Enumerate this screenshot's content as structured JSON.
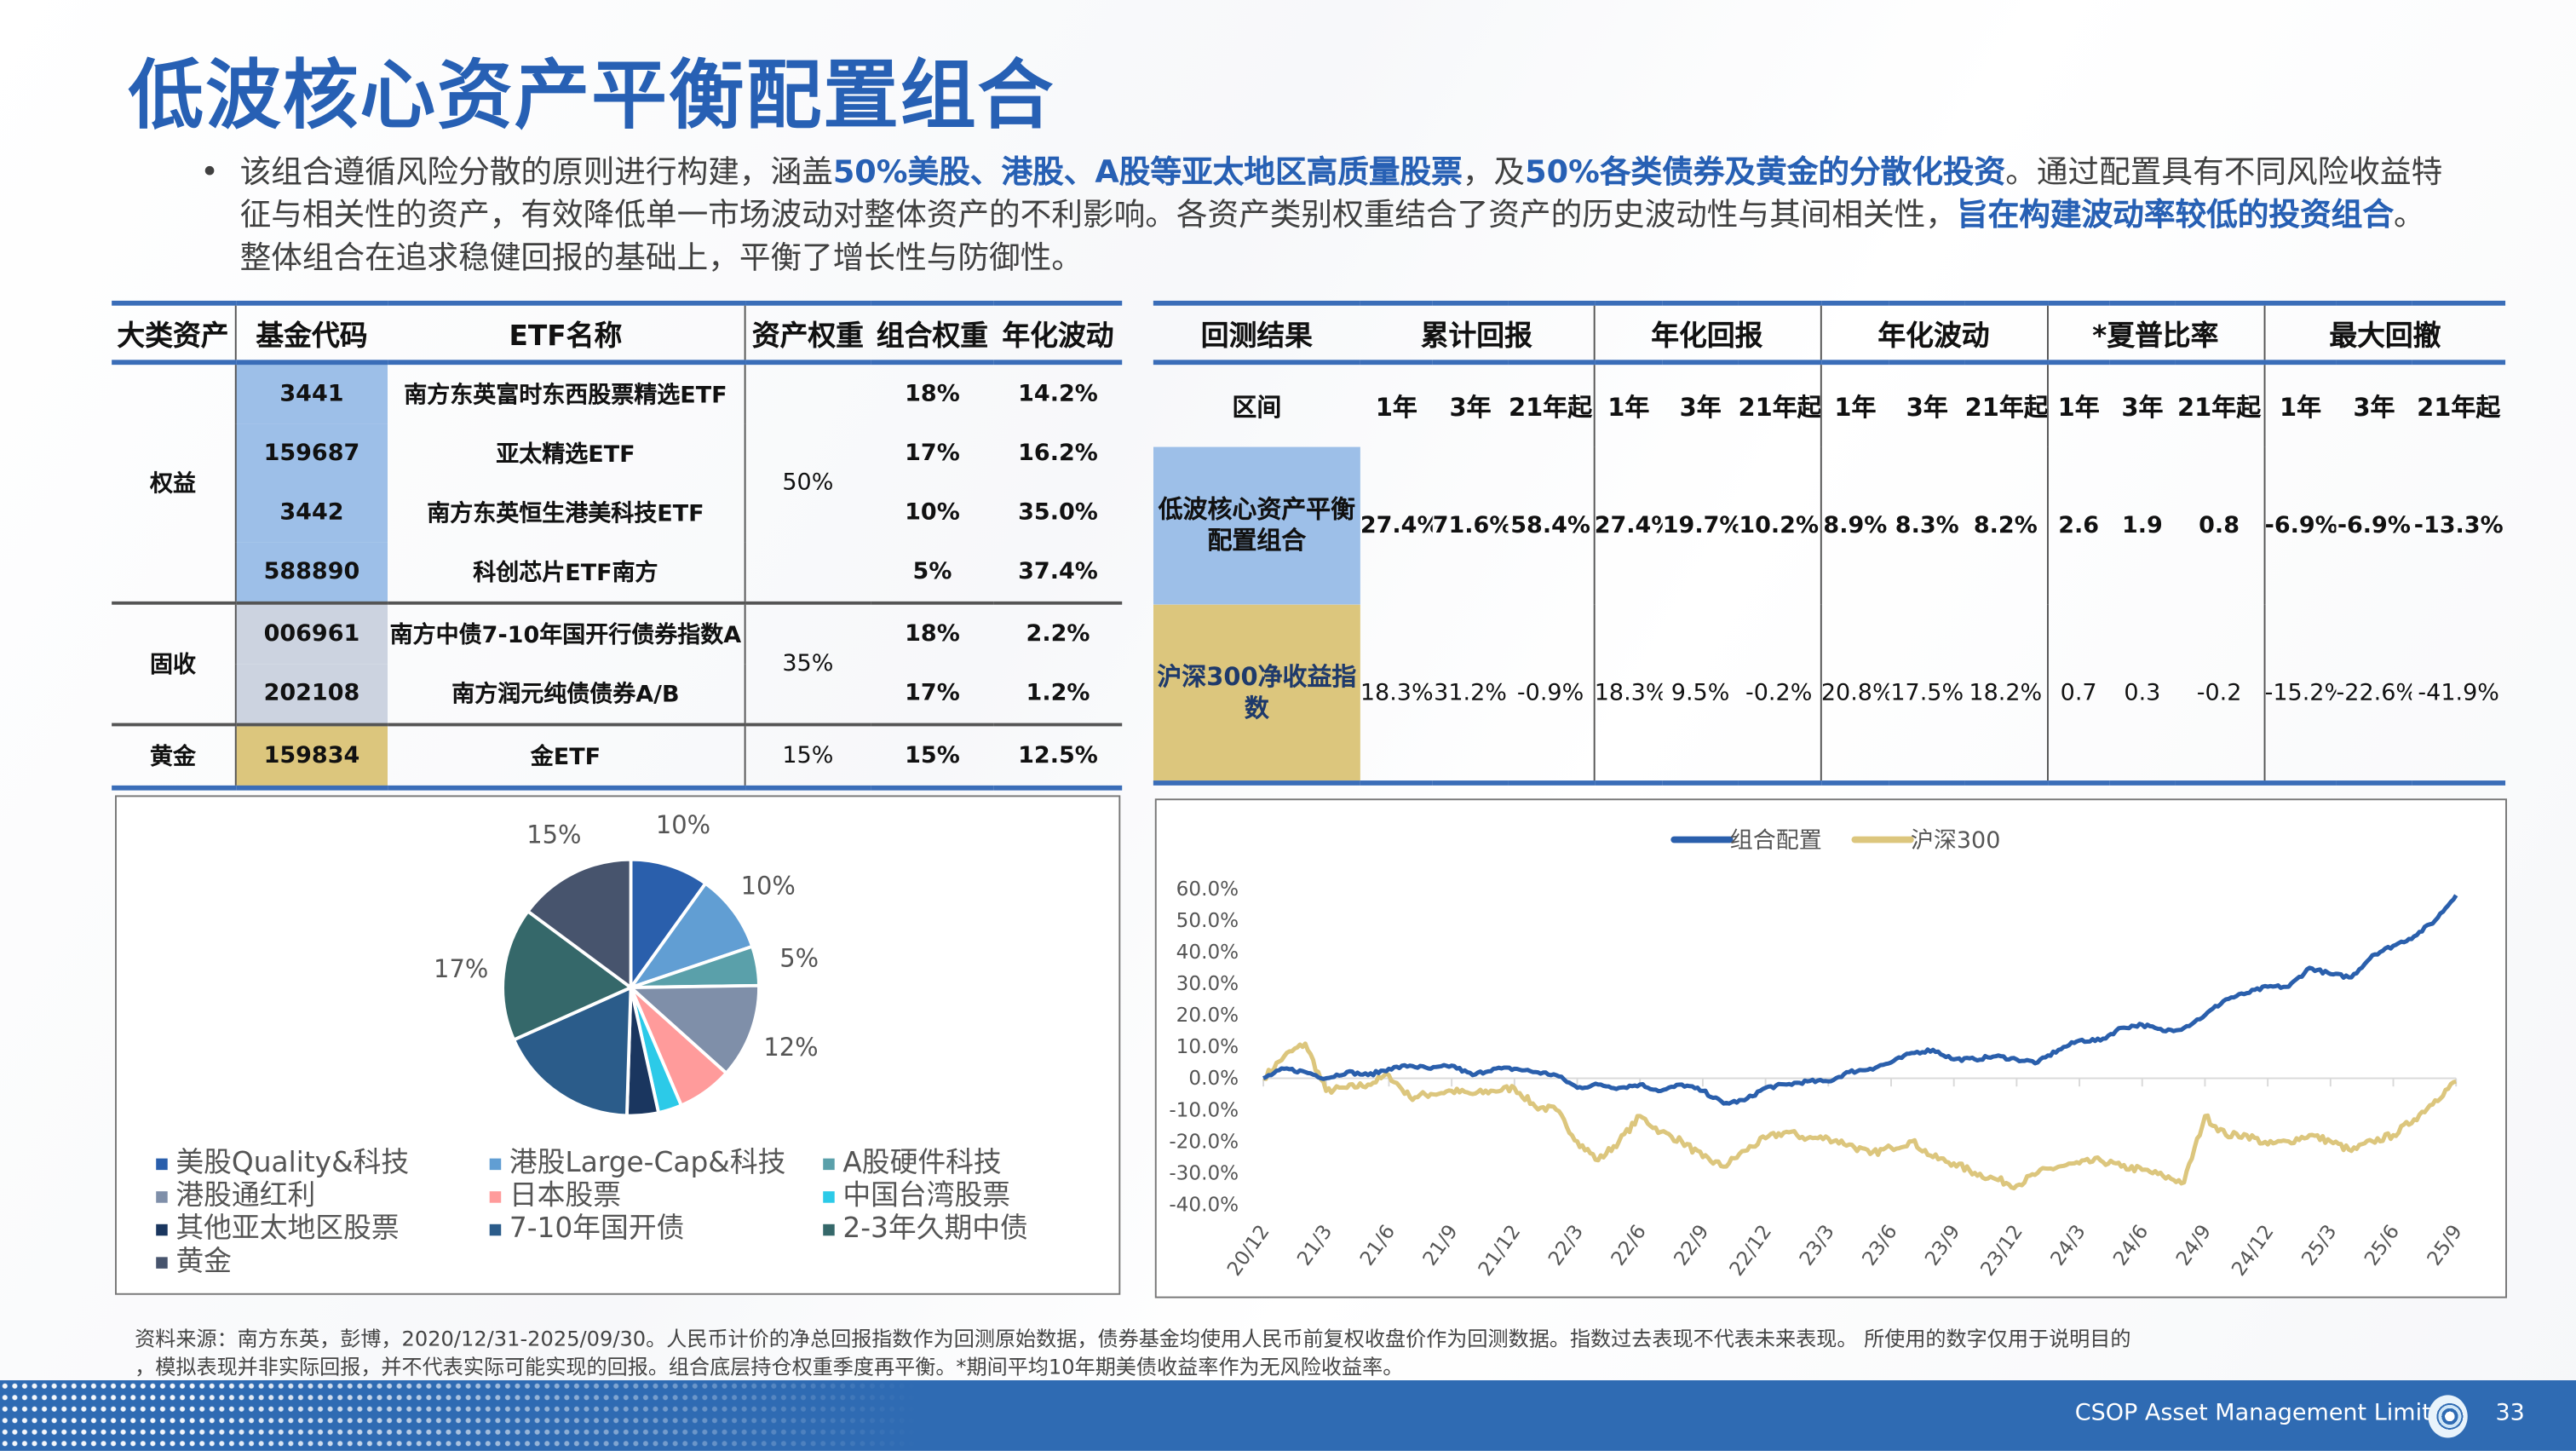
{
  "title": "低波核心资产平衡配置组合",
  "bullet": {
    "t1": "该组合遵循风险分散的原则进行构建，涵盖",
    "h1": "50%美股、港股、A股等亚太地区高质量股票",
    "t2": "，及",
    "h2": "50%各类债券及黄金的分散化投资",
    "t3": "。通过配置具有不同风险收益特征与相关性的资产，有效降低单一市场波动对整体资产的不利影响。各资产类别权重结合了资产的历史波动性与其间相关性，",
    "h3": "旨在构建波动率较低的投资组合",
    "t4": "。整体组合在追求稳健回报的基础上，平衡了增长性与防御性。"
  },
  "holdings": {
    "headers": [
      "大类资产",
      "基金代码",
      "ETF名称",
      "资产权重",
      "组合权重",
      "年化波动"
    ],
    "groups": [
      {
        "asset": "权益",
        "asset_weight": "50%",
        "rows": [
          {
            "code": "3441",
            "name": "南方东英富时东西股票精选ETF",
            "weight": "18%",
            "vol": "14.2%"
          },
          {
            "code": "159687",
            "name": "亚太精选ETF",
            "weight": "17%",
            "vol": "16.2%"
          },
          {
            "code": "3442",
            "name": "南方东英恒生港美科技ETF",
            "weight": "10%",
            "vol": "35.0%"
          },
          {
            "code": "588890",
            "name": "科创芯片ETF南方",
            "weight": "5%",
            "vol": "37.4%"
          }
        ]
      },
      {
        "asset": "固收",
        "asset_weight": "35%",
        "rows": [
          {
            "code": "006961",
            "name": "南方中债7-10年国开行债券指数A",
            "weight": "18%",
            "vol": "2.2%"
          },
          {
            "code": "202108",
            "name": "南方润元纯债债券A/B",
            "weight": "17%",
            "vol": "1.2%"
          }
        ]
      },
      {
        "asset": "黄金",
        "asset_weight": "15%",
        "rows": [
          {
            "code": "159834",
            "name": "金ETF",
            "weight": "15%",
            "vol": "12.5%"
          }
        ]
      }
    ]
  },
  "backtest": {
    "headers": [
      "回测结果",
      "累计回报",
      "年化回报",
      "年化波动",
      "*夏普比率",
      "最大回撤"
    ],
    "period_label": "区间",
    "periods": [
      "1年",
      "3年",
      "21年起"
    ],
    "rows": [
      {
        "label": "低波核心资产平衡配置组合",
        "values": [
          "27.4%",
          "71.6%",
          "58.4%",
          "27.4%",
          "19.7%",
          "10.2%",
          "8.9%",
          "8.3%",
          "8.2%",
          "2.6",
          "1.9",
          "0.8",
          "-6.9%",
          "-6.9%",
          "-13.3%"
        ]
      },
      {
        "label": "沪深300净收益指数",
        "values": [
          "18.3%",
          "31.2%",
          "-0.9%",
          "18.3%",
          "9.5%",
          "-0.2%",
          "20.8%",
          "17.5%",
          "18.2%",
          "0.7",
          "0.3",
          "-0.2",
          "-15.2%",
          "-22.6%",
          "-41.9%"
        ]
      }
    ]
  },
  "chart_data": [
    {
      "type": "pie",
      "title": "",
      "slices": [
        {
          "label": "美股Quality&科技",
          "value": 10,
          "display": "10%",
          "color": "#2a5fac"
        },
        {
          "label": "港股Large-Cap&科技",
          "value": 10,
          "display": "10%",
          "color": "#619ed3"
        },
        {
          "label": "A股硬件科技",
          "value": 5,
          "display": "5%",
          "color": "#5aa0aa"
        },
        {
          "label": "港股通红利",
          "value": 12,
          "display": "12%",
          "color": "#7f8fa9"
        },
        {
          "label": "日本股票",
          "value": 7,
          "display": "7%",
          "color": "#ff9b9b"
        },
        {
          "label": "中国台湾股票",
          "value": 3,
          "display": "3%",
          "color": "#2ccae8"
        },
        {
          "label": "其他亚太地区股票",
          "value": 4,
          "display": "4%",
          "color": "#1a365f"
        },
        {
          "label": "7-10年国开债",
          "value": 18,
          "display": "18%",
          "color": "#2b5c8a"
        },
        {
          "label": "2-3年久期中债",
          "value": 17,
          "display": "17%",
          "color": "#35686a"
        },
        {
          "label": "黄金",
          "value": 15,
          "display": "15%",
          "color": "#47546d"
        }
      ],
      "legend_position": "bottom"
    },
    {
      "type": "line",
      "title": "",
      "xlabel": "",
      "ylabel": "",
      "ylim": [
        -40,
        60
      ],
      "yticks": [
        "60.0%",
        "50.0%",
        "40.0%",
        "30.0%",
        "20.0%",
        "10.0%",
        "0.0%",
        "-10.0%",
        "-20.0%",
        "-30.0%",
        "-40.0%"
      ],
      "xticks": [
        "20/12",
        "21/3",
        "21/6",
        "21/9",
        "21/12",
        "22/3",
        "22/6",
        "22/9",
        "22/12",
        "23/3",
        "23/6",
        "23/9",
        "23/12",
        "24/3",
        "24/6",
        "24/9",
        "24/12",
        "25/3",
        "25/6",
        "25/9"
      ],
      "legend_position": "top",
      "x_start": "20/12",
      "x_end": "25/9",
      "x_step": "monthly",
      "series": [
        {
          "name": "组合配置",
          "color": "#2a5fac",
          "values": [
            0,
            3,
            2,
            0,
            2,
            1,
            3,
            4,
            3,
            4,
            1,
            3,
            3,
            2,
            1,
            -3,
            -2,
            -3,
            -2,
            -4,
            -2,
            -4,
            -8,
            -7,
            -3,
            -2,
            -1,
            -1,
            2,
            3,
            5,
            8,
            9,
            6,
            6,
            7,
            6,
            5,
            9,
            12,
            12,
            16,
            17,
            15,
            16,
            20,
            25,
            27,
            29,
            29,
            35,
            33,
            32,
            39,
            42,
            45,
            50,
            58
          ]
        },
        {
          "name": "沪深300",
          "color": "#dcc67d",
          "values": [
            0,
            7,
            11,
            -4,
            -3,
            -2,
            1,
            -6,
            -5,
            -4,
            -5,
            -4,
            -3,
            -9,
            -10,
            -20,
            -26,
            -20,
            -12,
            -17,
            -20,
            -25,
            -28,
            -23,
            -19,
            -17,
            -19,
            -19,
            -21,
            -24,
            -22,
            -20,
            -25,
            -27,
            -30,
            -32,
            -34,
            -30,
            -28,
            -27,
            -26,
            -28,
            -29,
            -31,
            -33,
            -12,
            -18,
            -18,
            -21,
            -20,
            -18,
            -20,
            -23,
            -20,
            -18,
            -13,
            -7,
            -1
          ]
        }
      ]
    }
  ],
  "notes": [
    "资料来源：南方东英，彭博，2020/12/31-2025/09/30。人民币计价的净总回报指数作为回测原始数据，债券基金均使用人民币前复权收盘价作为回测数据。指数过去表现不代表未来表现。 所使用的数字仅用于说明目的",
    "，模拟表现并非实际回报，并不代表实际可能实现的回报。组合底层持仓权重季度再平衡。*期间平均10年期美债收益率作为无风险收益率。"
  ],
  "footer": {
    "company": "CSOP Asset Management Limited",
    "page": "33"
  }
}
